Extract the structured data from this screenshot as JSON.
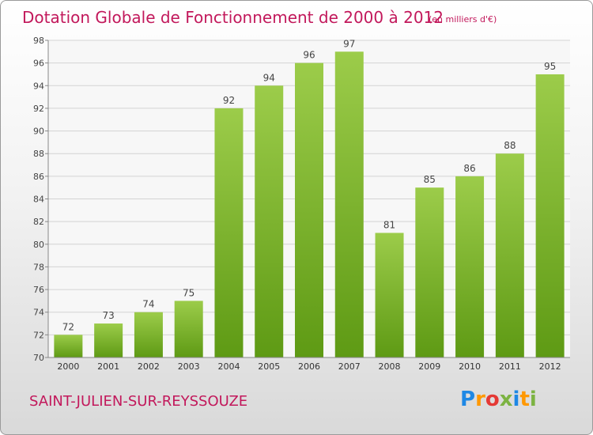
{
  "header": {
    "title": "Dotation Globale de Fonctionnement de 2000 à 2012",
    "subtitle": "(en milliers d'€)"
  },
  "footer": {
    "commune": "SAINT-JULIEN-SUR-REYSSOUZE",
    "logo_text": "Proxiti",
    "logo_colors": [
      "#1e88e5",
      "#ff9800",
      "#e53935",
      "#7cb342",
      "#1e88e5",
      "#ff9800",
      "#7cb342"
    ]
  },
  "chart_data": {
    "type": "bar",
    "title": "Dotation Globale de Fonctionnement de 2000 à 2012",
    "subtitle": "(en milliers d'€)",
    "categories": [
      "2000",
      "2001",
      "2002",
      "2003",
      "2004",
      "2005",
      "2006",
      "2007",
      "2008",
      "2009",
      "2010",
      "2011",
      "2012"
    ],
    "values": [
      72,
      73,
      74,
      75,
      92,
      94,
      96,
      97,
      81,
      85,
      86,
      88,
      95
    ],
    "ylim": [
      70,
      98
    ],
    "yticks": [
      70,
      72,
      74,
      76,
      78,
      80,
      82,
      84,
      86,
      88,
      90,
      92,
      94,
      96,
      98
    ],
    "grid": true,
    "bar_color_top": "#9ccc4a",
    "bar_color_bottom": "#5e9a14",
    "grid_color": "#d4d4d4"
  }
}
